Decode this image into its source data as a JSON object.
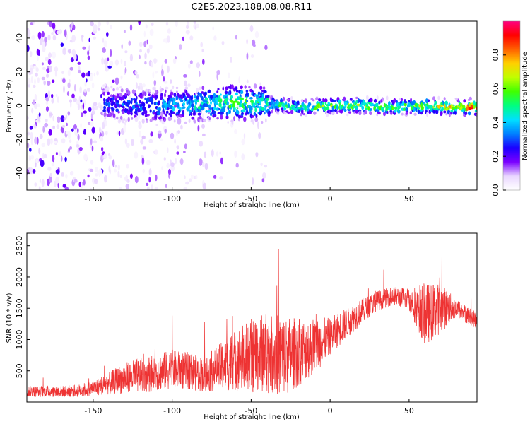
{
  "figure": {
    "title": "C2E5.2023.188.08.08.R11"
  },
  "colorbar": {
    "label": "Normalized spectral amplitude",
    "ticks": [
      "0.0",
      "0.2",
      "0.4",
      "0.6",
      "0.8"
    ],
    "range": [
      0.0,
      1.0
    ],
    "colormap": [
      "#ffffff",
      "#e9d6ff",
      "#7a00ff",
      "#1a00ff",
      "#0080ff",
      "#00e0ff",
      "#00ff80",
      "#40ff00",
      "#c0ff00",
      "#ffd000",
      "#ff6000",
      "#ff0000",
      "#ff0080"
    ]
  },
  "chart_data": [
    {
      "type": "heatmap",
      "title": "",
      "xlabel": "Height of straight line (km)",
      "ylabel": "Frequency (Hz)",
      "xlim": [
        -192,
        93
      ],
      "ylim": [
        -50,
        50
      ],
      "xticks": [
        -150,
        -100,
        -50,
        0,
        50
      ],
      "xtick_labels": [
        "-150",
        "-100",
        "-50",
        "0",
        "50"
      ],
      "yticks": [
        -40,
        -20,
        0,
        20,
        40
      ],
      "ytick_labels": [
        "-40",
        "-20",
        "0",
        "20",
        "40"
      ],
      "grid": false,
      "ridge": {
        "description_values": "dominant spectral ridge near 0 Hz",
        "x": [
          -140,
          -120,
          -100,
          -80,
          -60,
          -40,
          -20,
          0,
          20,
          40,
          60,
          80,
          90
        ],
        "freq": [
          1,
          0,
          0,
          1,
          2,
          1,
          -1,
          0,
          0,
          -1,
          0,
          -1,
          -1
        ],
        "amplitude": [
          0.3,
          0.35,
          0.4,
          0.5,
          0.6,
          0.5,
          0.55,
          0.65,
          0.65,
          0.6,
          0.7,
          0.75,
          0.95
        ]
      }
    },
    {
      "type": "line",
      "title": "",
      "xlabel": "Height of straight line (km)",
      "ylabel": "SNR (10 * v/v)",
      "xlim": [
        -192,
        93
      ],
      "ylim": [
        0,
        2700
      ],
      "xticks": [
        -150,
        -100,
        -50,
        0,
        50
      ],
      "xtick_labels": [
        "-150",
        "-100",
        "-50",
        "0",
        "50"
      ],
      "yticks": [
        500,
        1000,
        1500,
        2000,
        2500
      ],
      "ytick_labels": [
        "500",
        "1000",
        "1500",
        "2000",
        "2500"
      ],
      "grid": false,
      "color": "#ee3333",
      "x": [
        -192,
        -180,
        -170,
        -160,
        -150,
        -140,
        -130,
        -120,
        -110,
        -100,
        -90,
        -80,
        -70,
        -60,
        -50,
        -40,
        -30,
        -20,
        -10,
        0,
        10,
        20,
        30,
        40,
        50,
        60,
        70,
        80,
        93
      ],
      "y_mean": [
        170,
        170,
        170,
        180,
        220,
        300,
        380,
        430,
        470,
        520,
        500,
        440,
        550,
        680,
        740,
        800,
        730,
        800,
        900,
        1050,
        1250,
        1450,
        1620,
        1700,
        1650,
        1400,
        1500,
        1500,
        1300
      ],
      "y_noise": [
        90,
        90,
        90,
        100,
        120,
        180,
        250,
        280,
        300,
        320,
        300,
        280,
        380,
        500,
        600,
        650,
        650,
        550,
        450,
        300,
        250,
        200,
        160,
        150,
        180,
        500,
        400,
        150,
        130
      ]
    }
  ]
}
